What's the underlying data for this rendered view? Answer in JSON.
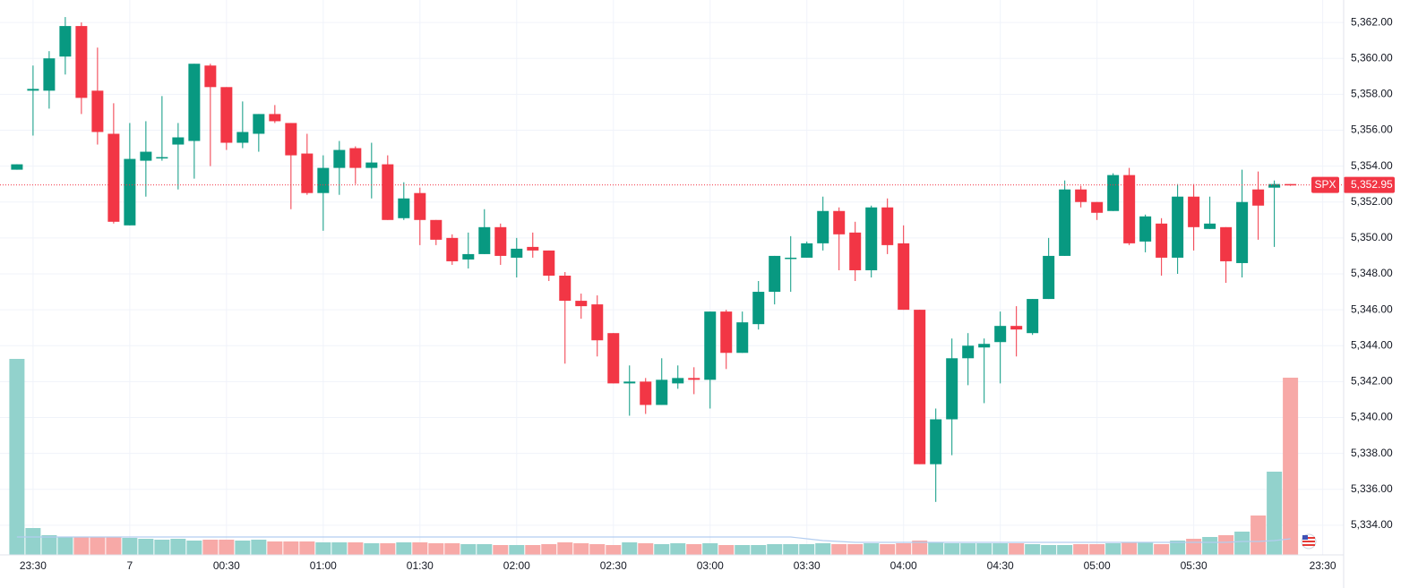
{
  "chart_data": {
    "type": "candlestick",
    "open": [
      5353.8,
      5358.2,
      5358.2,
      5360.1,
      5361.8,
      5358.2,
      5355.8,
      5350.7,
      5354.3,
      5354.5,
      5355.2,
      5355.4,
      5359.6,
      5358.4,
      5355.3,
      5355.8,
      5356.9,
      5356.4,
      5354.7,
      5352.5,
      5353.9,
      5355.0,
      5353.9,
      5354.1,
      5351.1,
      5352.5,
      5351.0,
      5350.0,
      5348.8,
      5349.1,
      5350.6,
      5348.9,
      5349.5,
      5349.3,
      5347.9,
      5346.5,
      5346.3,
      5344.7,
      5341.9,
      5342.0,
      5340.7,
      5341.9,
      5342.2,
      5342.1,
      5345.9,
      5343.6,
      5345.2,
      5347.0,
      5348.9,
      5348.9,
      5349.7,
      5351.5,
      5350.3,
      5348.2,
      5351.7,
      5349.7,
      5346.0,
      5337.4,
      5339.9,
      5343.3,
      5343.9,
      5344.2,
      5345.1,
      5344.7,
      5346.6,
      5349.0,
      5352.7,
      5352.0,
      5351.5,
      5353.5,
      5349.8,
      5350.8,
      5348.9,
      5352.3,
      5350.5,
      5350.6,
      5348.6,
      5352.7,
      5352.8,
      5353.0
    ],
    "high": [
      5354.1,
      5359.6,
      5360.4,
      5362.3,
      5362.0,
      5360.6,
      5357.5,
      5356.4,
      5356.5,
      5357.9,
      5356.4,
      5359.7,
      5359.7,
      5358.4,
      5357.6,
      5356.9,
      5357.4,
      5356.4,
      5355.8,
      5354.6,
      5355.4,
      5355.1,
      5355.3,
      5354.6,
      5353.1,
      5352.8,
      5351.0,
      5350.2,
      5350.3,
      5351.6,
      5350.8,
      5350.0,
      5350.3,
      5349.3,
      5348.1,
      5346.9,
      5346.8,
      5344.7,
      5342.9,
      5342.2,
      5343.3,
      5342.9,
      5342.8,
      5345.9,
      5346.0,
      5345.9,
      5347.6,
      5349.0,
      5350.1,
      5349.8,
      5352.3,
      5351.7,
      5350.9,
      5351.8,
      5352.2,
      5350.7,
      5346.0,
      5340.5,
      5344.4,
      5344.7,
      5344.4,
      5345.9,
      5346.2,
      5346.6,
      5350.0,
      5353.2,
      5352.9,
      5352.0,
      5353.6,
      5353.9,
      5351.3,
      5351.1,
      5353.0,
      5353.0,
      5352.3,
      5350.6,
      5353.8,
      5353.7,
      5353.2,
      5353.0
    ],
    "low": [
      5353.8,
      5355.7,
      5357.2,
      5359.1,
      5356.9,
      5355.2,
      5350.8,
      5350.7,
      5352.3,
      5354.3,
      5352.7,
      5353.3,
      5354.0,
      5354.9,
      5355.0,
      5354.8,
      5356.4,
      5351.6,
      5352.4,
      5350.4,
      5352.4,
      5353.0,
      5352.2,
      5351.0,
      5351.0,
      5349.6,
      5349.6,
      5348.5,
      5348.3,
      5349.1,
      5348.5,
      5347.8,
      5348.9,
      5347.6,
      5343.0,
      5345.5,
      5343.4,
      5341.9,
      5340.1,
      5340.2,
      5340.7,
      5341.6,
      5341.3,
      5340.5,
      5342.7,
      5343.6,
      5344.9,
      5346.3,
      5347.0,
      5348.9,
      5349.3,
      5348.2,
      5347.6,
      5347.8,
      5349.1,
      5346.0,
      5337.4,
      5335.3,
      5337.9,
      5341.8,
      5340.8,
      5341.9,
      5343.4,
      5344.6,
      5346.6,
      5349.0,
      5351.7,
      5351.0,
      5351.5,
      5349.6,
      5349.2,
      5347.9,
      5348.0,
      5349.3,
      5350.5,
      5347.5,
      5347.8,
      5349.9,
      5349.5,
      5352.9
    ],
    "close": [
      5354.1,
      5358.3,
      5360.0,
      5361.8,
      5357.8,
      5355.9,
      5350.9,
      5354.4,
      5354.8,
      5354.5,
      5355.6,
      5359.7,
      5358.4,
      5355.3,
      5355.9,
      5356.9,
      5356.5,
      5354.6,
      5352.5,
      5353.9,
      5354.9,
      5353.9,
      5354.2,
      5351.0,
      5352.2,
      5351.0,
      5349.9,
      5348.7,
      5349.1,
      5350.6,
      5349.0,
      5349.4,
      5349.3,
      5347.9,
      5346.5,
      5346.2,
      5344.3,
      5341.9,
      5342.0,
      5340.7,
      5342.1,
      5342.2,
      5342.1,
      5345.9,
      5343.6,
      5345.3,
      5347.0,
      5349.0,
      5348.9,
      5349.7,
      5351.5,
      5350.2,
      5348.2,
      5351.7,
      5349.6,
      5346.0,
      5337.4,
      5339.9,
      5343.3,
      5344.0,
      5344.1,
      5345.1,
      5344.9,
      5346.6,
      5349.0,
      5352.7,
      5352.0,
      5351.4,
      5353.5,
      5349.7,
      5351.2,
      5348.9,
      5352.3,
      5350.6,
      5350.8,
      5348.7,
      5352.0,
      5351.8,
      5353.0,
      5352.95
    ],
    "volume": [
      219,
      30,
      22,
      20,
      20,
      20,
      20,
      19,
      18,
      17,
      18,
      16,
      17,
      17,
      16,
      17,
      15,
      15,
      15,
      14,
      14,
      14,
      13,
      13,
      14,
      14,
      13,
      13,
      12,
      12,
      11,
      11,
      11,
      12,
      14,
      13,
      12,
      11,
      14,
      13,
      12,
      13,
      12,
      13,
      11,
      11,
      11,
      12,
      12,
      12,
      13,
      12,
      12,
      13,
      12,
      13,
      16,
      14,
      13,
      13,
      13,
      13,
      13,
      12,
      11,
      11,
      12,
      12,
      13,
      14,
      14,
      12,
      16,
      18,
      20,
      22,
      26,
      44,
      93,
      198
    ],
    "volume_ma": [
      20,
      20,
      20,
      20,
      20,
      20,
      20,
      20,
      20,
      20,
      20,
      20,
      20,
      20,
      20,
      20,
      20,
      20,
      20,
      20,
      20,
      20,
      20,
      20,
      20,
      20,
      20,
      20,
      20,
      20,
      20,
      20,
      20,
      20,
      20,
      20,
      20,
      20,
      20,
      20,
      20,
      20,
      20,
      20,
      20,
      20,
      20,
      20,
      20,
      18,
      16,
      15,
      14,
      14,
      14,
      14,
      14,
      14,
      14,
      14,
      14,
      14,
      14,
      14,
      14,
      14,
      14,
      14,
      14,
      14,
      14,
      14,
      14,
      14,
      14,
      14,
      15,
      15,
      16,
      18
    ],
    "up_color": "#089981",
    "down_color": "#f23645",
    "volume_up_color": "#92d2cc",
    "volume_down_color": "#f7a9a7",
    "volume_ma_color": "#b3cdf0",
    "xlim": [
      -1.05,
      82.3
    ],
    "xticks": [
      {
        "value": 1,
        "label": "23:30"
      },
      {
        "value": 7,
        "label": "7"
      },
      {
        "value": 13,
        "label": "00:30"
      },
      {
        "value": 19,
        "label": "01:00"
      },
      {
        "value": 25,
        "label": "01:30"
      },
      {
        "value": 31,
        "label": "02:00"
      },
      {
        "value": 37,
        "label": "02:30"
      },
      {
        "value": 43,
        "label": "03:00"
      },
      {
        "value": 49,
        "label": "03:30"
      },
      {
        "value": 55,
        "label": "04:00"
      },
      {
        "value": 61,
        "label": "04:30"
      },
      {
        "value": 67,
        "label": "05:00"
      },
      {
        "value": 73,
        "label": "05:30"
      },
      {
        "value": 81,
        "label": "23:30"
      }
    ],
    "ylim": [
      5332.35,
      5363.25
    ],
    "yticks": [
      {
        "value": 5334,
        "label": "5,334.00"
      },
      {
        "value": 5336,
        "label": "5,336.00"
      },
      {
        "value": 5338,
        "label": "5,338.00"
      },
      {
        "value": 5340,
        "label": "5,340.00"
      },
      {
        "value": 5342,
        "label": "5,342.00"
      },
      {
        "value": 5344,
        "label": "5,344.00"
      },
      {
        "value": 5346,
        "label": "5,346.00"
      },
      {
        "value": 5348,
        "label": "5,348.00"
      },
      {
        "value": 5350,
        "label": "5,350.00"
      },
      {
        "value": 5352,
        "label": "5,352.00"
      },
      {
        "value": 5354,
        "label": "5,354.00"
      },
      {
        "value": 5356,
        "label": "5,356.00"
      },
      {
        "value": 5358,
        "label": "5,358.00"
      },
      {
        "value": 5360,
        "label": "5,360.00"
      },
      {
        "value": 5362,
        "label": "5,362.00"
      }
    ],
    "vlim": [
      0,
      230
    ],
    "grid": true,
    "symbol": "SPX",
    "last_price": {
      "value": 5352.95,
      "label": "5,352.95"
    }
  }
}
